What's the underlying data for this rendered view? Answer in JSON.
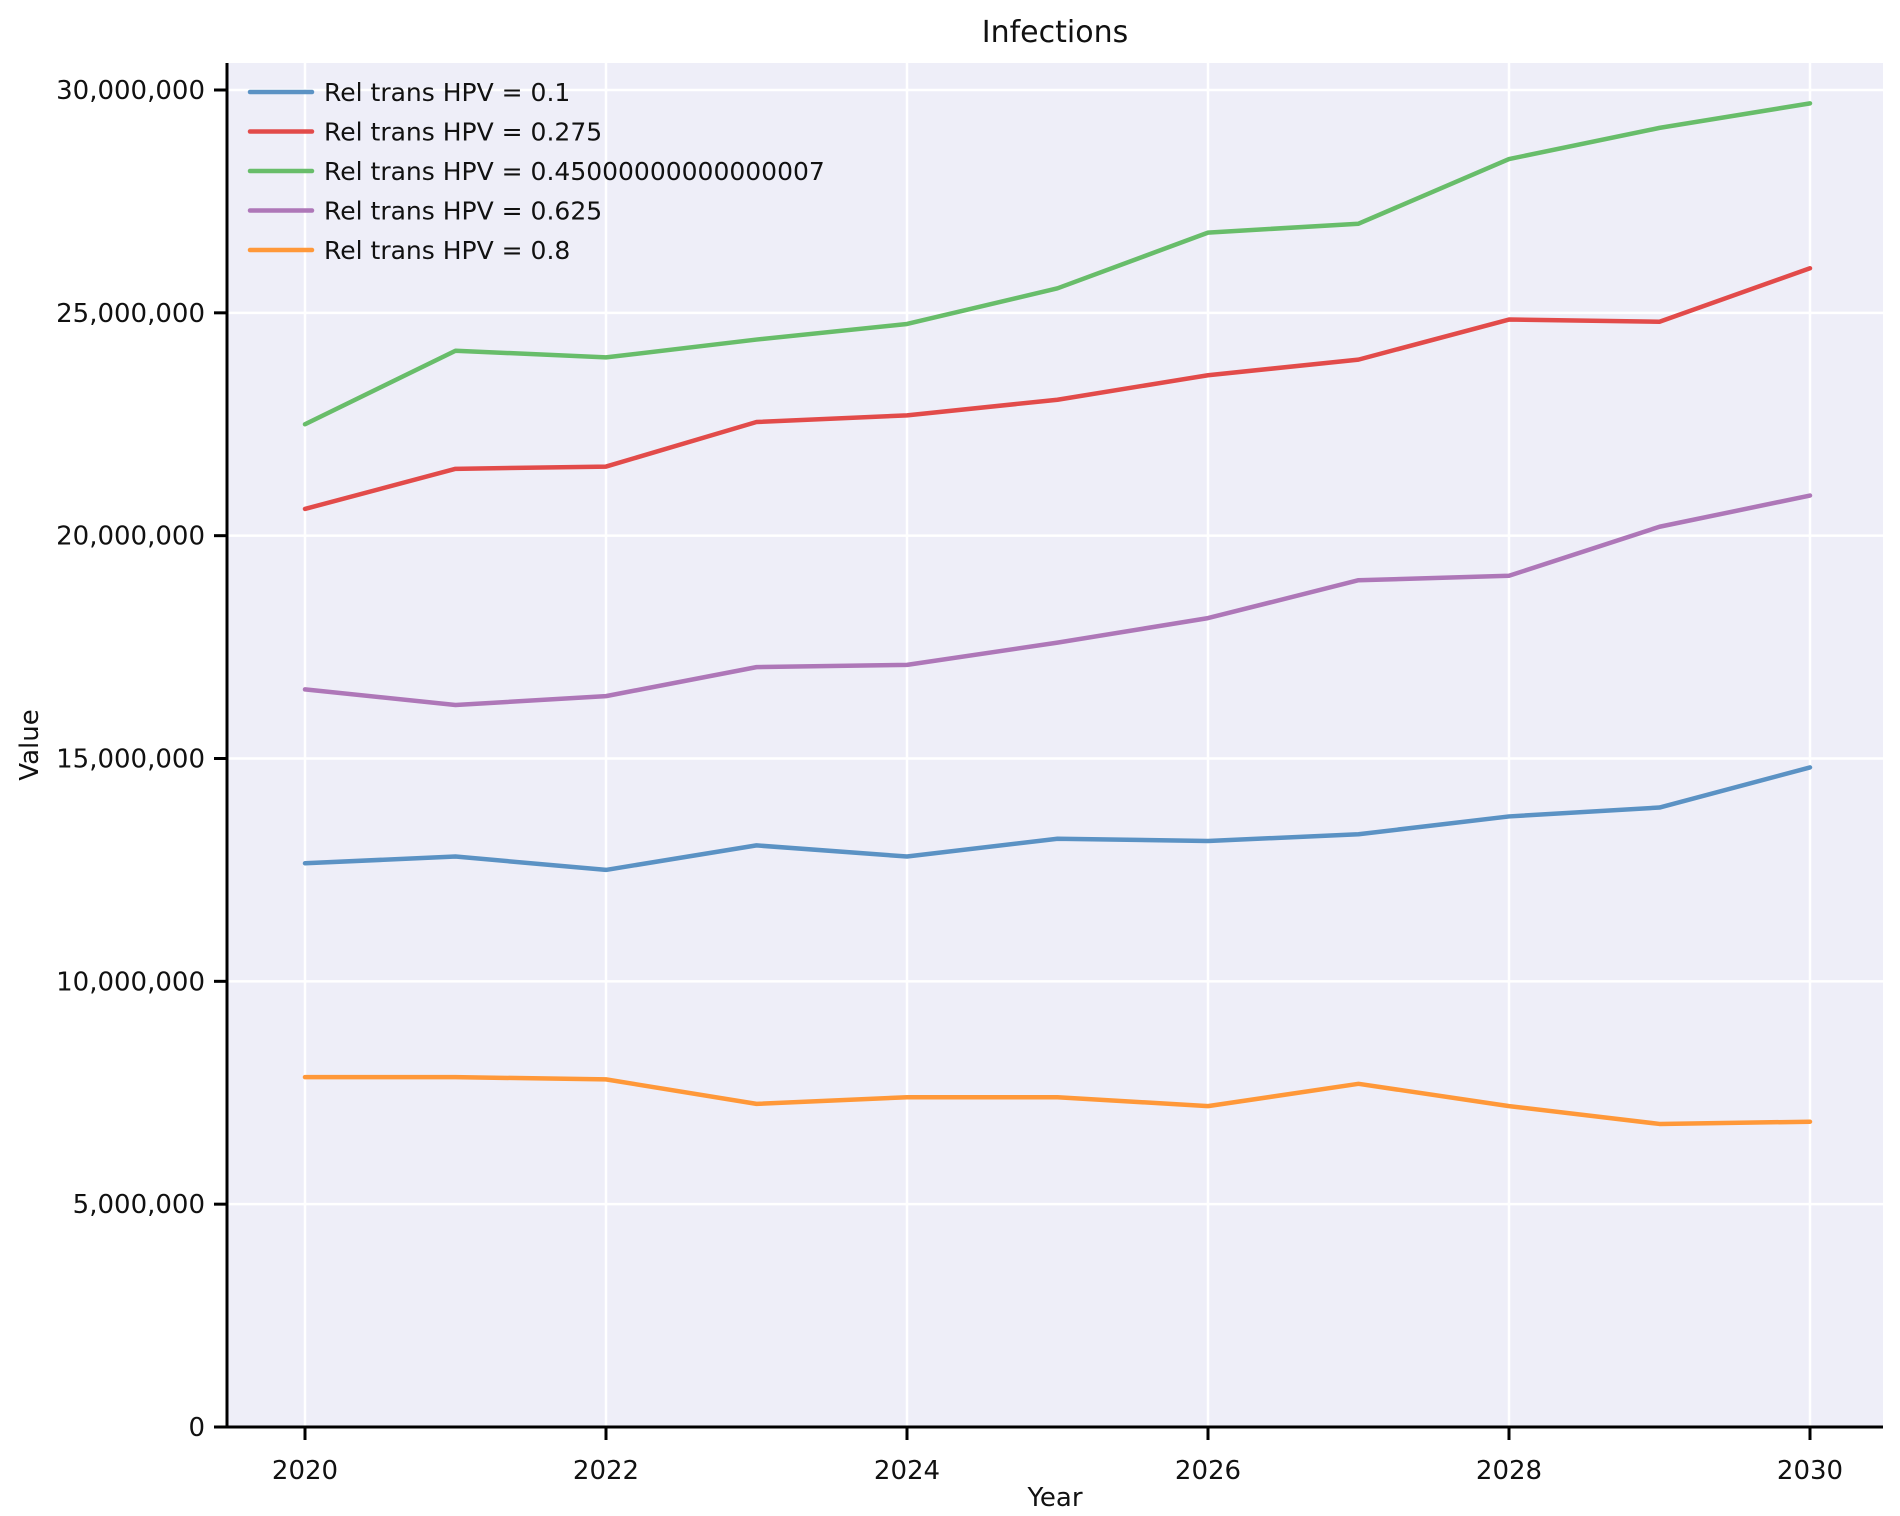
{
  "chart_data": {
    "type": "line",
    "title": "Infections",
    "xlabel": "Year",
    "ylabel": "Value",
    "x": [
      2020,
      2021,
      2022,
      2023,
      2024,
      2025,
      2026,
      2027,
      2028,
      2029,
      2030
    ],
    "xtick_labels": [
      "2020",
      "2022",
      "2024",
      "2026",
      "2028",
      "2030"
    ],
    "xtick_values": [
      2020,
      2022,
      2024,
      2026,
      2028,
      2030
    ],
    "ytick_labels": [
      "0",
      "5,000,000",
      "10,000,000",
      "15,000,000",
      "20,000,000",
      "25,000,000",
      "30,000,000"
    ],
    "ytick_values": [
      0,
      5000000,
      10000000,
      15000000,
      20000000,
      25000000,
      30000000
    ],
    "xlim": [
      2020,
      2030
    ],
    "ylim": [
      0,
      30600000
    ],
    "grid": "on",
    "legend_position": "upper-left",
    "plot_background": "#eeeef8",
    "gridline_color": "#ffffff",
    "series": [
      {
        "name": "Rel trans HPV = 0.1",
        "color": "#5b92c4",
        "values": [
          12650000,
          12800000,
          12500000,
          13050000,
          12800000,
          13200000,
          13150000,
          13300000,
          13700000,
          13900000,
          14800000
        ]
      },
      {
        "name": "Rel trans HPV = 0.275",
        "color": "#e24b4a",
        "values": [
          20600000,
          21500000,
          21550000,
          22550000,
          22700000,
          23050000,
          23600000,
          23950000,
          24850000,
          24800000,
          26000000
        ]
      },
      {
        "name": "Rel trans HPV = 0.45000000000000007",
        "color": "#68bd6a",
        "values": [
          22500000,
          24150000,
          24000000,
          24400000,
          24750000,
          25550000,
          26800000,
          27000000,
          28450000,
          29150000,
          29700000
        ]
      },
      {
        "name": "Rel trans HPV = 0.625",
        "color": "#ae77b8",
        "values": [
          16550000,
          16200000,
          16400000,
          17050000,
          17100000,
          17600000,
          18150000,
          19000000,
          19100000,
          20200000,
          20900000
        ]
      },
      {
        "name": "Rel trans HPV = 0.8",
        "color": "#ff9839",
        "values": [
          7850000,
          7850000,
          7800000,
          7250000,
          7400000,
          7400000,
          7200000,
          7700000,
          7200000,
          6800000,
          6850000
        ]
      }
    ]
  }
}
